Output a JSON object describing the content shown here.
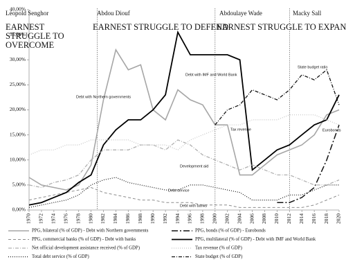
{
  "chart_data": {
    "type": "line",
    "x": [
      1970,
      1972,
      1974,
      1976,
      1978,
      1980,
      1982,
      1984,
      1986,
      1988,
      1990,
      1992,
      1994,
      1996,
      1998,
      2000,
      2002,
      2004,
      2006,
      2008,
      2010,
      2012,
      2014,
      2016,
      2018,
      2020
    ],
    "xlim": [
      1970,
      2020
    ],
    "xticks": [
      1970,
      1972,
      1974,
      1976,
      1978,
      1980,
      1982,
      1984,
      1986,
      1988,
      1990,
      1992,
      1994,
      1996,
      1998,
      2000,
      2002,
      2004,
      2006,
      2008,
      2010,
      2012,
      2014,
      2016,
      2018,
      2020
    ],
    "ylim": [
      0,
      40
    ],
    "yticks": [
      {
        "value": 0,
        "label": "0,00%"
      },
      {
        "value": 5,
        "label": "5,00%"
      },
      {
        "value": 10,
        "label": "10,00%"
      },
      {
        "value": 15,
        "label": "15,00%"
      },
      {
        "value": 20,
        "label": "20,00%"
      },
      {
        "value": 25,
        "label": "25,00%"
      },
      {
        "value": 30,
        "label": "30,00%"
      },
      {
        "value": 35,
        "label": "35,00%"
      },
      {
        "value": 40,
        "label": "40,00%"
      }
    ],
    "era_lines": [
      1981,
      2000,
      2012
    ],
    "eras": [
      {
        "leader": "Léopold  Senghor",
        "slogan": [
          "EARNEST",
          "STRUGGLE TO",
          "OVERCOME"
        ]
      },
      {
        "leader": "Abdou Diouf",
        "slogan": [
          "EARNEST STRUGGLE TO DEFEND"
        ]
      },
      {
        "leader": "Abdoulaye Wade",
        "slogan": [
          "EARNEST STRUGGLE TO EXPAND"
        ]
      },
      {
        "leader": "Macky Sall",
        "slogan": []
      }
    ],
    "series": [
      {
        "name": "PPG, bilateral (% of GDP) - Debt with Northern governments",
        "label": "Debt with Northern governments",
        "color": "#a6a6a6",
        "style": "solid",
        "values": [
          6.5,
          5,
          4.5,
          4,
          5,
          9,
          22,
          32,
          28,
          29,
          20,
          18,
          24,
          22,
          21,
          17,
          17,
          7,
          7,
          9,
          11,
          12,
          13,
          15,
          19,
          20
        ]
      },
      {
        "name": "PPG, bonds (% of GDP) - Eurobonds",
        "label": "Eurobonds",
        "color": "#111111",
        "style": "longdashdot",
        "values": [
          null,
          null,
          null,
          null,
          null,
          null,
          null,
          null,
          null,
          null,
          null,
          null,
          null,
          null,
          null,
          null,
          null,
          null,
          null,
          null,
          1.5,
          1.5,
          2.5,
          4.5,
          10,
          17
        ]
      },
      {
        "name": "PPG, commercial banks (% of GDP) - Debt with banks",
        "label": "Debt with banks",
        "color": "#8c8c8c",
        "style": "dashed",
        "values": [
          2,
          2.5,
          3,
          3.5,
          4,
          4.5,
          3.5,
          3,
          2.5,
          2,
          2,
          1.5,
          1.5,
          1.5,
          1,
          1,
          1,
          0.5,
          0.5,
          0.5,
          0.5,
          0.5,
          0.5,
          1,
          2,
          3
        ]
      },
      {
        "name": "PPG, multilateral (% of GDP) - Debt with IMF and World Bank",
        "label": "Debt with IMF and World Bank",
        "color": "#000000",
        "style": "thick",
        "values": [
          1,
          1.5,
          2.5,
          3.5,
          5.5,
          7,
          13,
          16,
          18,
          18,
          20,
          23,
          35.5,
          31,
          31,
          31,
          31,
          30,
          8,
          10,
          12,
          13,
          15,
          17,
          18,
          23
        ]
      },
      {
        "name": "Net official development assistance received (% of GDP)",
        "label": "Development aid",
        "color": "#b0b0b0",
        "style": "dashdot",
        "values": [
          5,
          4.5,
          5.5,
          6,
          7,
          10,
          12,
          12,
          12,
          13,
          13,
          12,
          14,
          13,
          11,
          10,
          9,
          8,
          9,
          8,
          7,
          7,
          6,
          5,
          5,
          6
        ]
      },
      {
        "name": "Tax revenue (% of GDP)",
        "label": "Tax revenue",
        "color": "#c4c4c4",
        "style": "dotted",
        "values": [
          11,
          12,
          12,
          13,
          13,
          14,
          14,
          14,
          14,
          13,
          13,
          13,
          12,
          14,
          15,
          16,
          17,
          17,
          18,
          18,
          18,
          19,
          19,
          19,
          18,
          17
        ]
      },
      {
        "name": "Total debt service (% of GDP)",
        "label": "Debt service",
        "color": "#111111",
        "style": "dotted",
        "values": [
          0.5,
          1,
          1.5,
          2,
          3,
          5,
          6,
          6.5,
          5.5,
          5,
          4.5,
          4,
          4,
          5,
          5,
          4.5,
          4,
          3.5,
          2,
          2,
          2,
          3,
          3,
          4,
          5,
          5
        ]
      },
      {
        "name": "State budget (% of GDP)",
        "label": "State budget ratio",
        "color": "#111111",
        "style": "dashdot",
        "values": [
          null,
          null,
          null,
          null,
          null,
          null,
          null,
          null,
          null,
          null,
          null,
          null,
          null,
          null,
          null,
          17,
          20,
          21,
          24,
          23,
          22,
          24,
          27,
          26,
          28,
          21
        ]
      }
    ]
  }
}
